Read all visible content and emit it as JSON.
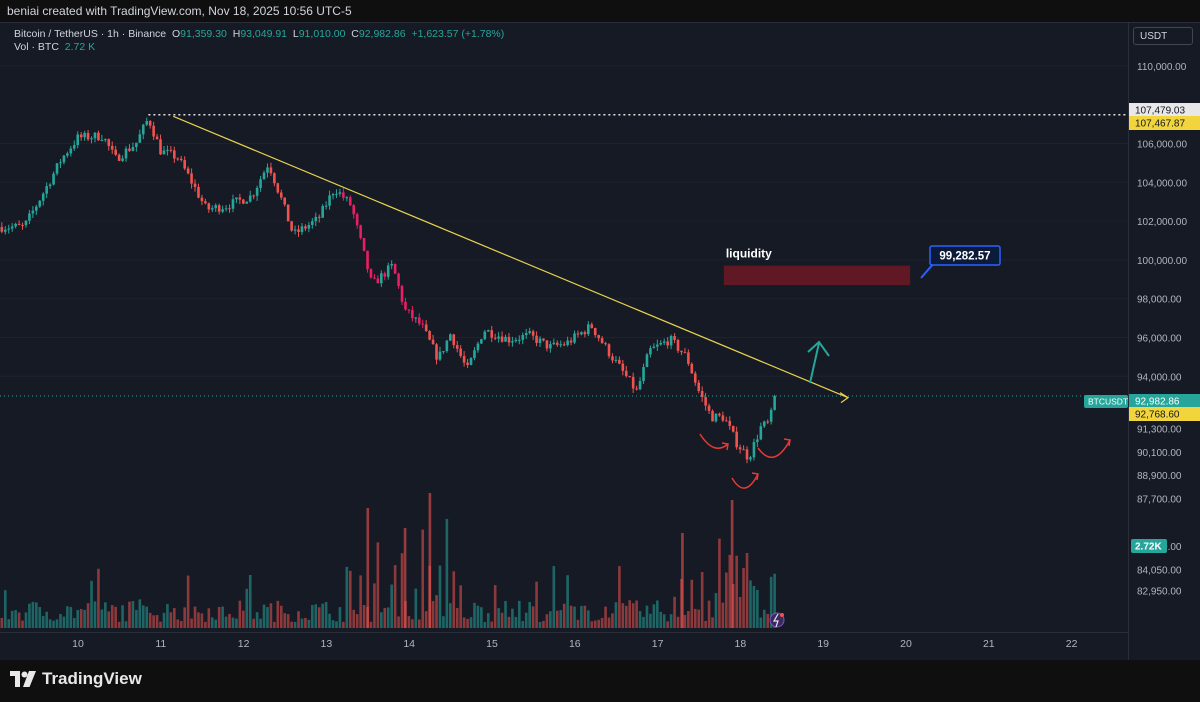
{
  "header": {
    "created_by": "beniai created with TradingView.com, Nov 18, 2025 10:56 UTC-5"
  },
  "legend": {
    "symbol": "Bitcoin / TetherUS · 1h · Binance",
    "o_label": "O",
    "o": "91,359.30",
    "h_label": "H",
    "h": "93,049.91",
    "l_label": "L",
    "l": "91,010.00",
    "c_label": "C",
    "c": "92,982.86",
    "change": "+1,623.57 (+1.78%)",
    "vol_label": "Vol · BTC",
    "vol": "2.72 K"
  },
  "currency": "USDT",
  "colors": {
    "up": "#26a69a",
    "down": "#ef5350",
    "trendline": "#e8d44d",
    "background": "#161a25"
  },
  "chart_data": {
    "type": "candlestick",
    "title": "",
    "xlabel": "",
    "ylabel": "",
    "x_ticks": [
      "10",
      "11",
      "12",
      "13",
      "14",
      "15",
      "16",
      "17",
      "18",
      "19",
      "20",
      "21",
      "22"
    ],
    "y_ticks": [
      {
        "value": 110000,
        "label": "110,000.00"
      },
      {
        "value": 106000,
        "label": "106,000.00"
      },
      {
        "value": 104000,
        "label": "104,000.00"
      },
      {
        "value": 102000,
        "label": "102,000.00"
      },
      {
        "value": 100000,
        "label": "100,000.00"
      },
      {
        "value": 98000,
        "label": "98,000.00"
      },
      {
        "value": 96000,
        "label": "96,000.00"
      },
      {
        "value": 94000,
        "label": "94,000.00"
      },
      {
        "value": 91300,
        "label": "91,300.00"
      },
      {
        "value": 90100,
        "label": "90,100.00"
      },
      {
        "value": 88900,
        "label": "88,900.00"
      },
      {
        "value": 87700,
        "label": "87,700.00"
      },
      {
        "value": 85250,
        "label": "85,250.00"
      },
      {
        "value": 84050,
        "label": "84,050.00"
      },
      {
        "value": 82950,
        "label": "82,950.00"
      }
    ],
    "price_path": [
      {
        "day": 9.35,
        "price": 101700
      },
      {
        "day": 9.6,
        "price": 103600
      },
      {
        "day": 9.8,
        "price": 105200
      },
      {
        "day": 10.0,
        "price": 106300
      },
      {
        "day": 10.3,
        "price": 106400
      },
      {
        "day": 10.45,
        "price": 105200
      },
      {
        "day": 10.7,
        "price": 106000
      },
      {
        "day": 10.85,
        "price": 107300
      },
      {
        "day": 11.0,
        "price": 105600
      },
      {
        "day": 11.2,
        "price": 105300
      },
      {
        "day": 11.35,
        "price": 104200
      },
      {
        "day": 11.55,
        "price": 102600
      },
      {
        "day": 11.8,
        "price": 102800
      },
      {
        "day": 12.1,
        "price": 103300
      },
      {
        "day": 12.3,
        "price": 105000
      },
      {
        "day": 12.45,
        "price": 103200
      },
      {
        "day": 12.6,
        "price": 101300
      },
      {
        "day": 12.9,
        "price": 102100
      },
      {
        "day": 13.1,
        "price": 103700
      },
      {
        "day": 13.3,
        "price": 102800
      },
      {
        "day": 13.55,
        "price": 98700
      },
      {
        "day": 13.8,
        "price": 99700
      },
      {
        "day": 13.95,
        "price": 97400
      },
      {
        "day": 14.15,
        "price": 96600
      },
      {
        "day": 14.35,
        "price": 94900
      },
      {
        "day": 14.5,
        "price": 96200
      },
      {
        "day": 14.7,
        "price": 94300
      },
      {
        "day": 14.9,
        "price": 96400
      },
      {
        "day": 15.2,
        "price": 95900
      },
      {
        "day": 15.45,
        "price": 96100
      },
      {
        "day": 15.7,
        "price": 95500
      },
      {
        "day": 15.9,
        "price": 95700
      },
      {
        "day": 16.2,
        "price": 96600
      },
      {
        "day": 16.4,
        "price": 95300
      },
      {
        "day": 16.6,
        "price": 94100
      },
      {
        "day": 16.75,
        "price": 93200
      },
      {
        "day": 16.9,
        "price": 95300
      },
      {
        "day": 17.15,
        "price": 95900
      },
      {
        "day": 17.35,
        "price": 95000
      },
      {
        "day": 17.5,
        "price": 93200
      },
      {
        "day": 17.65,
        "price": 91900
      },
      {
        "day": 17.8,
        "price": 91900
      },
      {
        "day": 17.95,
        "price": 90600
      },
      {
        "day": 18.1,
        "price": 89800
      },
      {
        "day": 18.25,
        "price": 91400
      },
      {
        "day": 18.35,
        "price": 91600
      },
      {
        "day": 18.42,
        "price": 92983
      }
    ],
    "trendline": {
      "start": {
        "day": 11.15,
        "price": 107400
      },
      "end": {
        "day": 19.3,
        "price": 92900
      }
    },
    "resistance": {
      "price": 107479.03
    },
    "liquidity_zone": {
      "label": "liquidity",
      "day_start": 17.8,
      "day_end": 20.05,
      "price_top": 99700,
      "price_bottom": 98700
    },
    "target_label": "99,282.57",
    "price_labels": [
      {
        "text": "107,479.03",
        "kind": "plain"
      },
      {
        "text": "107,467.87",
        "kind": "yellow"
      },
      {
        "text": "92,982.86",
        "kind": "green",
        "tag": "BTCUSDT"
      },
      {
        "text": "92,768.60",
        "kind": "yellow"
      },
      {
        "text": "2.72K",
        "kind": "green"
      }
    ]
  },
  "brand": {
    "name": "TradingView"
  }
}
